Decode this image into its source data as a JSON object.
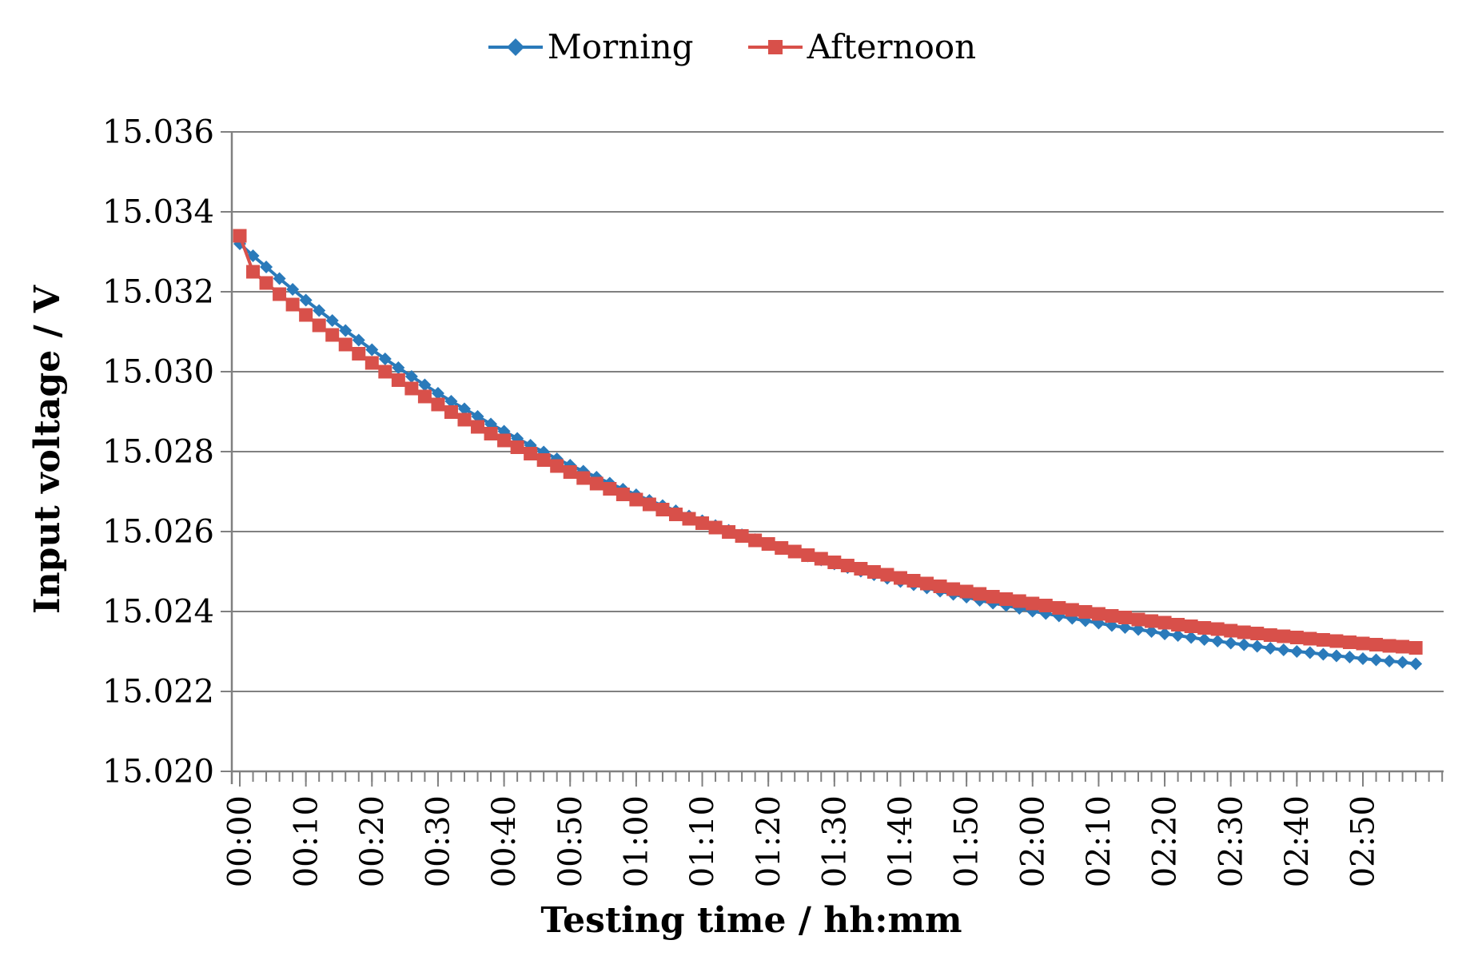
{
  "page": {
    "background": "#FFFFFF"
  },
  "chart_data": {
    "type": "line",
    "title": "",
    "xlabel": "Testing time / hh:mm",
    "ylabel": "Input voltage / V",
    "legend_position": "top-center",
    "grid": "horizontal",
    "axis_color": "#808080",
    "text_color": "#000000",
    "ylim": [
      15.02,
      15.036
    ],
    "y_tick_step": 0.002,
    "y_tick_labels": [
      "15.036",
      "15.034",
      "15.032",
      "15.030",
      "15.028",
      "15.026",
      "15.024",
      "15.022",
      "15.020"
    ],
    "x_axis_minutes": [
      0,
      182
    ],
    "x_minor_tick_step_minutes": 2,
    "x_tick_minutes": [
      0,
      10,
      20,
      30,
      40,
      50,
      60,
      70,
      80,
      90,
      100,
      110,
      120,
      130,
      140,
      150,
      160,
      170
    ],
    "x_tick_labels": [
      "00:00",
      "00:10",
      "00:20",
      "00:30",
      "00:40",
      "00:50",
      "01:00",
      "01:10",
      "01:20",
      "01:30",
      "01:40",
      "01:50",
      "02:00",
      "02:10",
      "02:20",
      "02:30",
      "02:40",
      "02:50"
    ],
    "x_minutes": [
      0,
      2,
      4,
      6,
      8,
      10,
      12,
      14,
      16,
      18,
      20,
      22,
      24,
      26,
      28,
      30,
      32,
      34,
      36,
      38,
      40,
      42,
      44,
      46,
      48,
      50,
      52,
      54,
      56,
      58,
      60,
      62,
      64,
      66,
      68,
      70,
      72,
      74,
      76,
      78,
      80,
      82,
      84,
      86,
      88,
      90,
      92,
      94,
      96,
      98,
      100,
      102,
      104,
      106,
      108,
      110,
      112,
      114,
      116,
      118,
      120,
      122,
      124,
      126,
      128,
      130,
      132,
      134,
      136,
      138,
      140,
      142,
      144,
      146,
      148,
      150,
      152,
      154,
      156,
      158,
      160,
      162,
      164,
      166,
      168,
      170,
      172,
      174,
      176,
      178
    ],
    "series": [
      {
        "name": "Morning",
        "color": "#2A7ABA",
        "marker": "diamond",
        "values": [
          15.0332,
          15.0329,
          15.03262,
          15.03233,
          15.03206,
          15.03179,
          15.03153,
          15.03128,
          15.03103,
          15.03079,
          15.03055,
          15.03032,
          15.0301,
          15.02988,
          15.02967,
          15.02946,
          15.02926,
          15.02907,
          15.02888,
          15.02869,
          15.02851,
          15.02833,
          15.02816,
          15.02799,
          15.02782,
          15.02766,
          15.02751,
          15.02736,
          15.02721,
          15.02706,
          15.02692,
          15.02678,
          15.02665,
          15.02652,
          15.02639,
          15.02627,
          15.02615,
          15.02603,
          15.02592,
          15.0258,
          15.0257,
          15.02559,
          15.02549,
          15.02539,
          15.02529,
          15.02519,
          15.0251,
          15.02501,
          15.02492,
          15.02483,
          15.02475,
          15.02467,
          15.02459,
          15.02451,
          15.02443,
          15.02436,
          15.02428,
          15.02421,
          15.02415,
          15.02408,
          15.02401,
          15.02395,
          15.02389,
          15.02383,
          15.02377,
          15.02371,
          15.02365,
          15.0236,
          15.02355,
          15.0235,
          15.02344,
          15.0234,
          15.02335,
          15.0233,
          15.02326,
          15.02321,
          15.02317,
          15.02313,
          15.02308,
          15.02304,
          15.023,
          15.02297,
          15.02293,
          15.02289,
          15.02286,
          15.02282,
          15.02279,
          15.02276,
          15.02273,
          15.02269
        ]
      },
      {
        "name": "Afternoon",
        "color": "#D8504A",
        "marker": "square",
        "values": [
          15.0334,
          15.0325,
          15.03222,
          15.03194,
          15.03168,
          15.03142,
          15.03116,
          15.03092,
          15.03068,
          15.03045,
          15.03022,
          15.03,
          15.02979,
          15.02958,
          15.02938,
          15.02918,
          15.02899,
          15.0288,
          15.02862,
          15.02845,
          15.02828,
          15.02811,
          15.02795,
          15.02779,
          15.02764,
          15.02749,
          15.02734,
          15.0272,
          15.02707,
          15.02693,
          15.0268,
          15.02668,
          15.02655,
          15.02643,
          15.02632,
          15.02621,
          15.0261,
          15.02599,
          15.02589,
          15.02578,
          15.02569,
          15.02559,
          15.0255,
          15.02541,
          15.02532,
          15.02523,
          15.02515,
          15.02507,
          15.02499,
          15.02492,
          15.02484,
          15.02477,
          15.0247,
          15.02463,
          15.02456,
          15.0245,
          15.02444,
          15.02437,
          15.02431,
          15.02426,
          15.0242,
          15.02415,
          15.02409,
          15.02404,
          15.02399,
          15.02394,
          15.02389,
          15.02385,
          15.0238,
          15.02376,
          15.02372,
          15.02367,
          15.02363,
          15.02359,
          15.02356,
          15.02352,
          15.02348,
          15.02345,
          15.02341,
          15.02338,
          15.02335,
          15.02332,
          15.02329,
          15.02326,
          15.02323,
          15.0232,
          15.02317,
          15.02314,
          15.02312,
          15.02309
        ]
      }
    ]
  }
}
